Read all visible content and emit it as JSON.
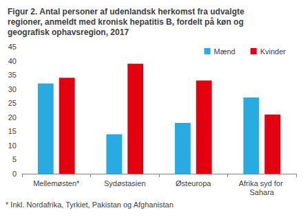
{
  "chart_data": {
    "type": "bar",
    "title": "Figur 2. Antal personer af udenlandsk herkomst fra udvalgte regioner, anmeldt med kronisk hepatitis B, fordelt på køn og geografisk ophavsregion, 2017",
    "categories": [
      "Mellemøsten*",
      "Sydøstasien",
      "Østeuropa",
      "Afrika syd for Sahara"
    ],
    "series": [
      {
        "name": "Mænd",
        "color": "#29aae1",
        "values": [
          32,
          14,
          18,
          27
        ]
      },
      {
        "name": "Kvinder",
        "color": "#e3000f",
        "values": [
          34,
          39,
          33,
          21
        ]
      }
    ],
    "ylim": [
      0,
      45
    ],
    "yticks": [
      0,
      5,
      10,
      15,
      20,
      25,
      30,
      35,
      40,
      45
    ],
    "grid": false,
    "legend": "top-right",
    "annotations": [
      "* Inkl. Nordafrika, Tyrkiet, Pakistan og Afghanistan"
    ]
  }
}
